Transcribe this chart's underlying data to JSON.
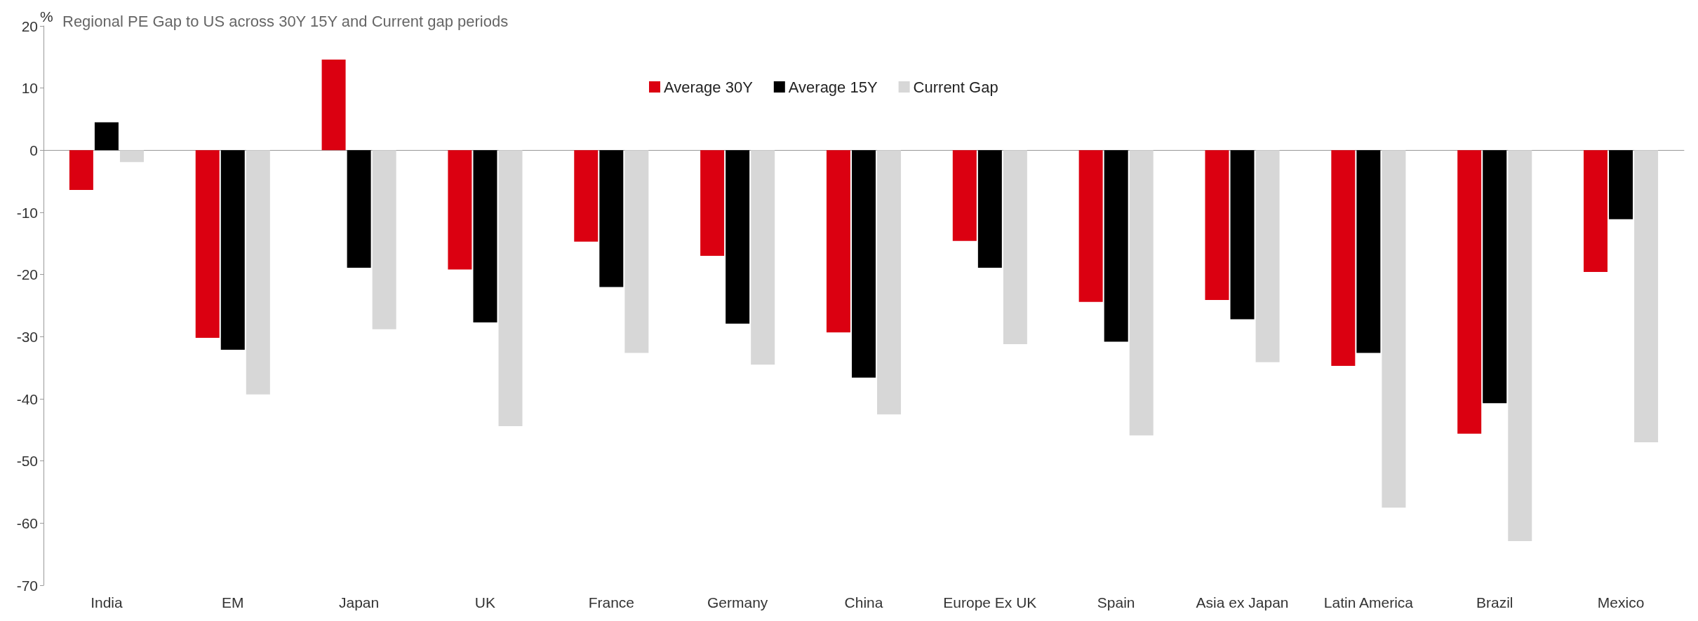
{
  "chart_data": {
    "type": "bar",
    "title": "Regional PE Gap to US across 30Y 15Y and Current gap periods",
    "ylabel": "%",
    "categories": [
      "India",
      "EM",
      "Japan",
      "UK",
      "France",
      "Germany",
      "China",
      "Europe Ex UK",
      "Spain",
      "Asia ex Japan",
      "Latin America",
      "Brazil",
      "Mexico"
    ],
    "series": [
      {
        "name": "Average 30Y",
        "color": "#db0011",
        "values": [
          -6.4,
          -30.2,
          14.6,
          -19.2,
          -14.7,
          -17,
          -29.3,
          -14.6,
          -24.4,
          -24.1,
          -34.7,
          -45.6,
          -19.6
        ]
      },
      {
        "name": "Average 15Y",
        "color": "#000000",
        "values": [
          4.5,
          -32.1,
          -18.9,
          -27.7,
          -22,
          -27.9,
          -36.6,
          -18.9,
          -30.8,
          -27.2,
          -32.6,
          -40.7,
          -11.1
        ]
      },
      {
        "name": "Current Gap",
        "color": "#d7d7d7",
        "values": [
          -1.9,
          -39.3,
          -28.8,
          -44.4,
          -32.6,
          -34.5,
          -42.5,
          -31.2,
          -45.9,
          -34.1,
          -57.5,
          -62.9,
          -47
        ]
      }
    ],
    "ylim": [
      -70,
      20
    ],
    "yticks": [
      -70,
      -60,
      -50,
      -40,
      -30,
      -20,
      -10,
      0,
      10,
      20
    ],
    "legend": "top"
  }
}
